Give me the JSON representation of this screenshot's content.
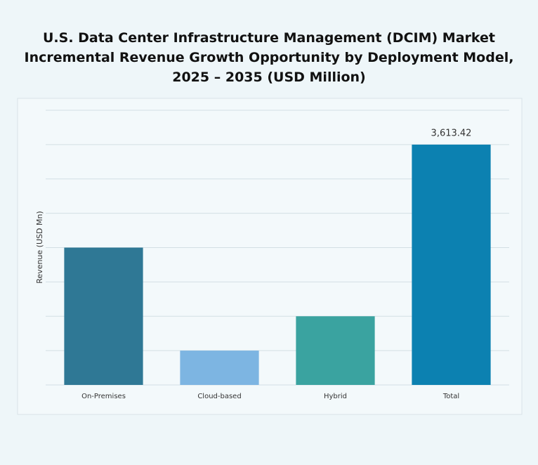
{
  "chart_data": {
    "type": "bar",
    "title": "U.S. Data Center Infrastructure Management (DCIM) Market Incremental Revenue Growth Opportunity by Deployment Model, 2025 – 2035 (USD Million)",
    "y_label": "Revenue (USD Mn)",
    "categories": [
      "On-Premises",
      "Cloud-based",
      "Hybrid",
      "Total"
    ],
    "values": [
      2064.8,
      516.2,
      1032.4,
      3613.42
    ],
    "value_labels": [
      null,
      null,
      null,
      "3,613.42"
    ],
    "colors": [
      "#2f7895",
      "#7db5e2",
      "#3aa3a0",
      "#0c81b1"
    ],
    "ylim": [
      0,
      4129.6
    ],
    "yticks": [
      0,
      516.2,
      1032.4,
      1548.6,
      2064.8,
      2581,
      3097.2,
      3613.4,
      4129.6
    ],
    "grid": true
  }
}
